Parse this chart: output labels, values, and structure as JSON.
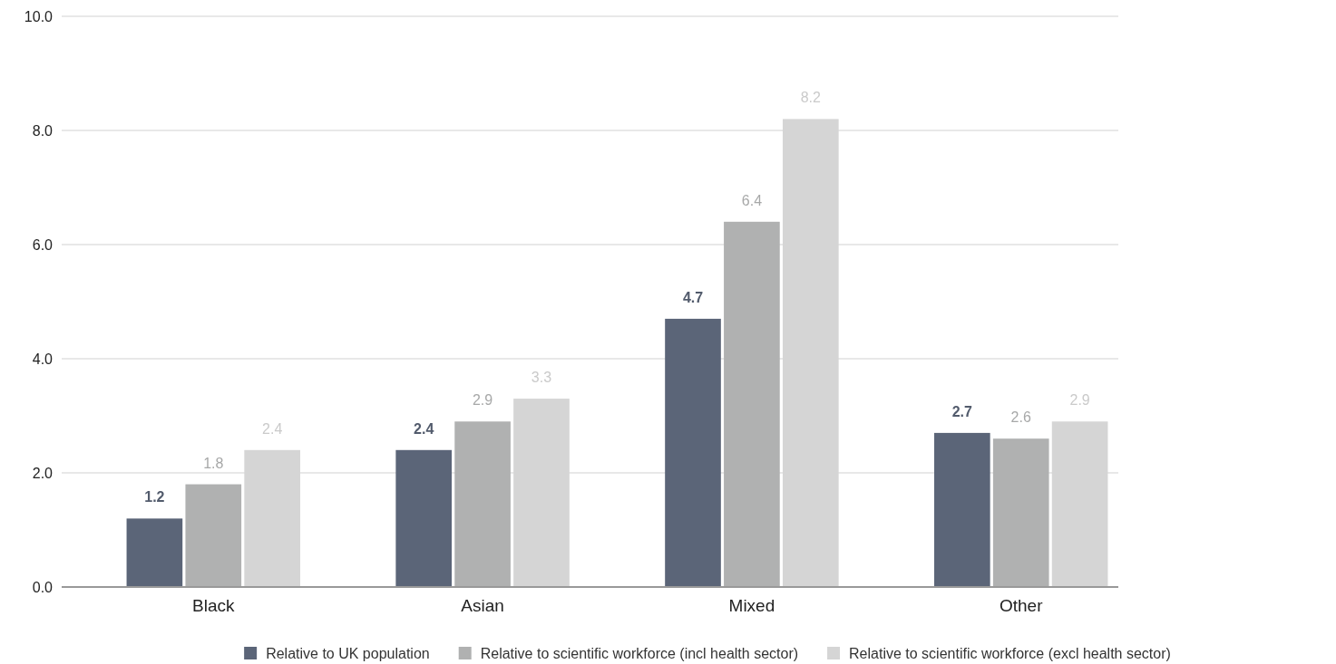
{
  "chart_data": {
    "type": "bar",
    "categories": [
      "Black",
      "Asian",
      "Mixed",
      "Other"
    ],
    "series": [
      {
        "name": "Relative to UK population",
        "color": "#5b6578",
        "values": [
          1.2,
          2.4,
          4.7,
          2.7
        ]
      },
      {
        "name": "Relative to scientific workforce (incl health sector)",
        "color": "#b0b1b1",
        "values": [
          1.8,
          2.9,
          6.4,
          2.6
        ]
      },
      {
        "name": "Relative to scientific workforce (excl health sector)",
        "color": "#d5d5d5",
        "values": [
          2.4,
          3.3,
          8.2,
          2.9
        ]
      }
    ],
    "ylim": [
      0,
      10
    ],
    "yticks": [
      {
        "value": 0,
        "label": "0.0"
      },
      {
        "value": 2,
        "label": "2.0"
      },
      {
        "value": 4,
        "label": "4.0"
      },
      {
        "value": 6,
        "label": "6.0"
      },
      {
        "value": 8,
        "label": "8.0"
      },
      {
        "value": 10,
        "label": "10.0"
      }
    ],
    "grid": "y",
    "legend": "bottom",
    "data_labels": true
  }
}
